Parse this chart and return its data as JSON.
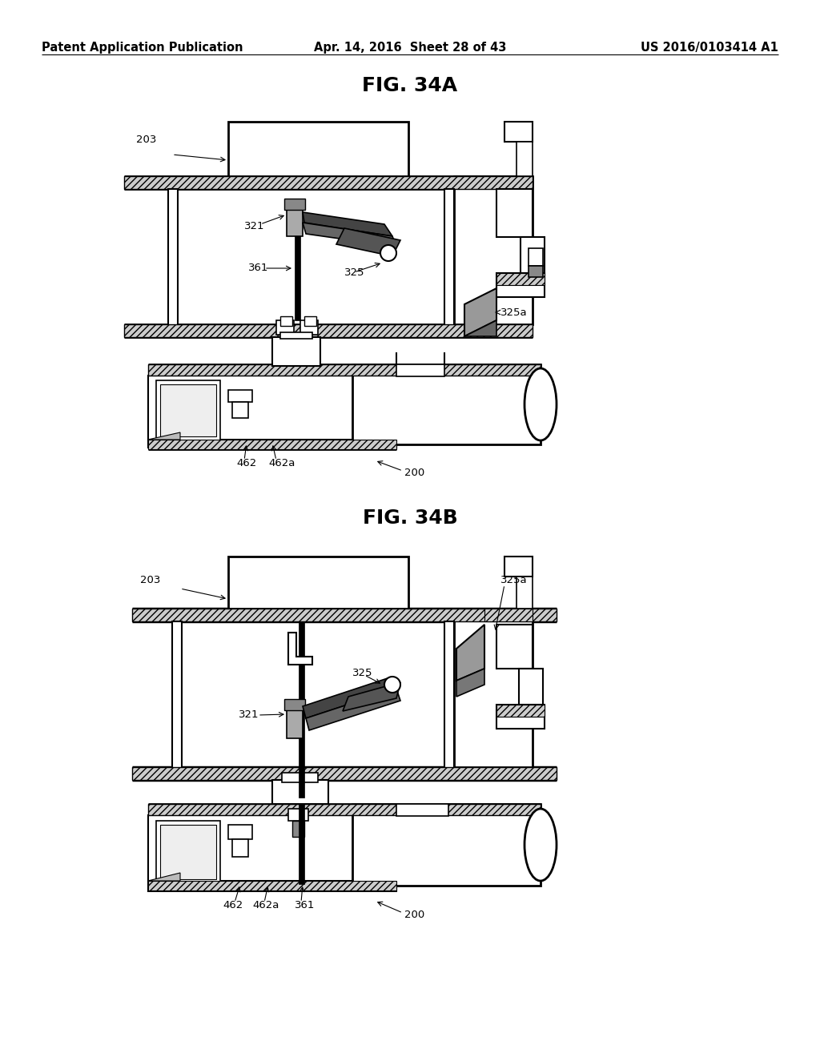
{
  "page_header": {
    "left": "Patent Application Publication",
    "center": "Apr. 14, 2016  Sheet 28 of 43",
    "right": "US 2016/0103414 A1"
  },
  "fig_34a_title": "FIG. 34A",
  "fig_34b_title": "FIG. 34B",
  "bg_color": "#ffffff",
  "line_color": "#000000",
  "text_color": "#000000",
  "header_fontsize": 10.5,
  "title_fontsize": 18,
  "label_fontsize": 9.5
}
